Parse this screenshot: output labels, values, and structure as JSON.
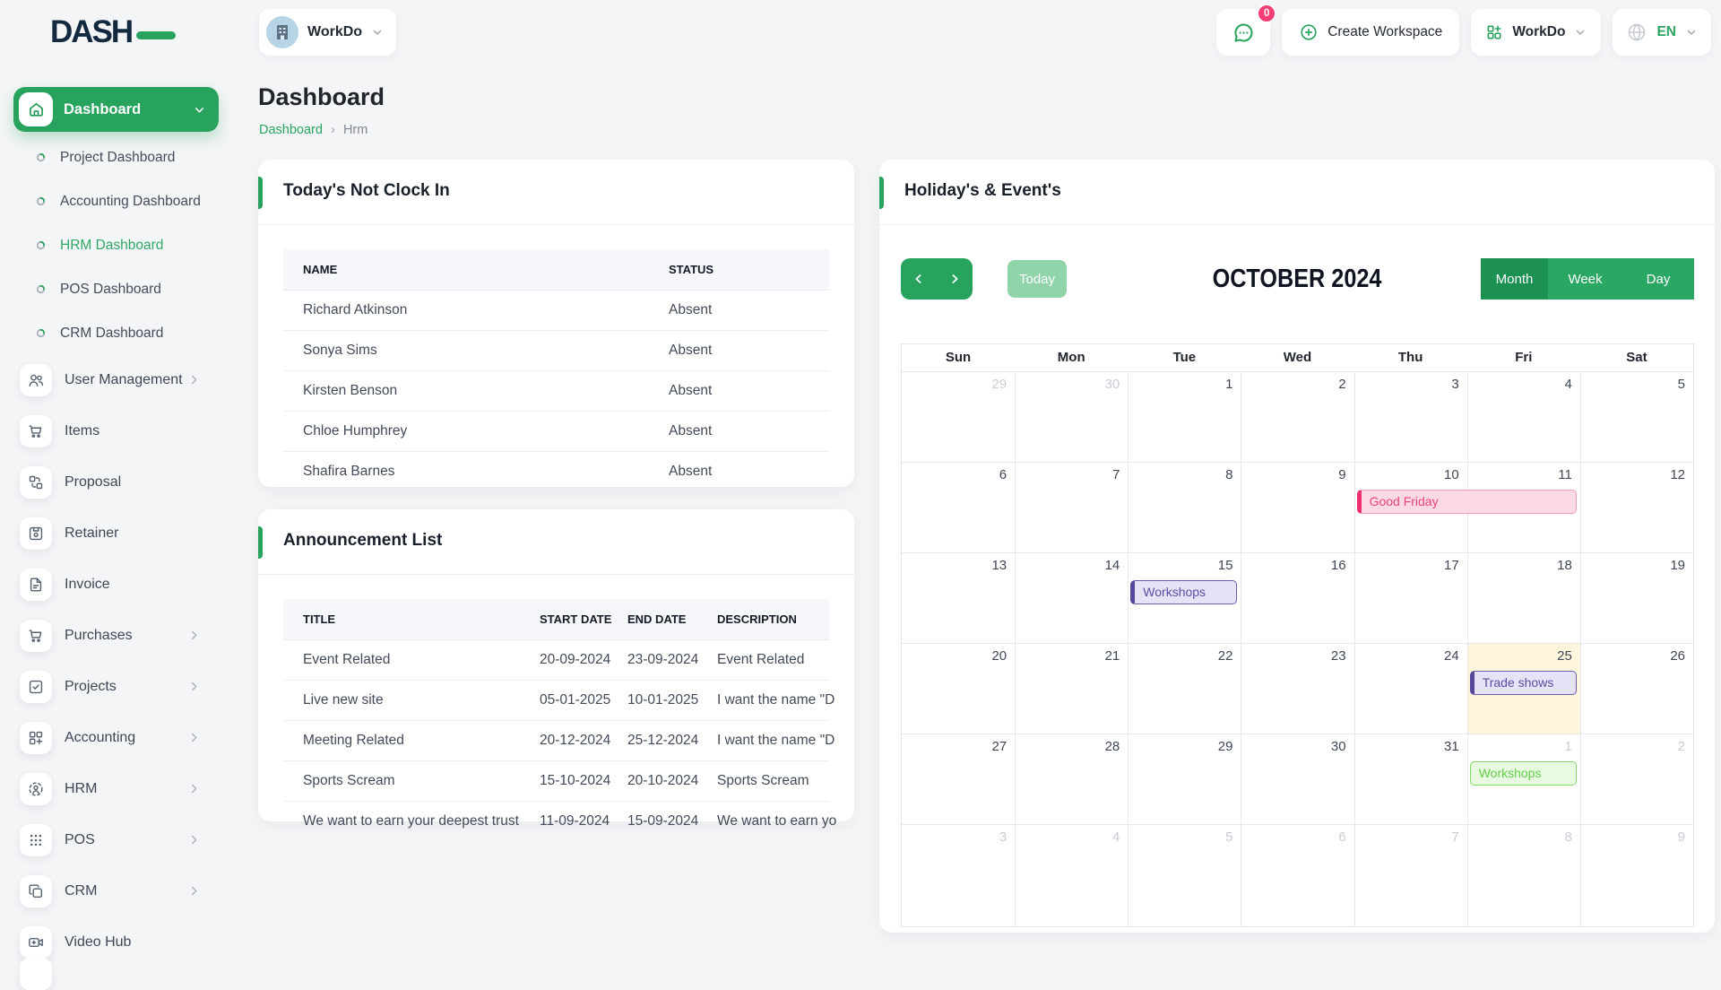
{
  "brand": {
    "logo_text": "DASH"
  },
  "topbar": {
    "workspace_pill": {
      "label": "WorkDo"
    },
    "messages": {
      "badge": "0"
    },
    "create_workspace": {
      "label": "Create Workspace"
    },
    "app_menu": {
      "label": "WorkDo"
    },
    "language": {
      "label": "EN"
    }
  },
  "sidebar": {
    "dashboard_group": {
      "label": "Dashboard",
      "children": [
        {
          "label": "Project Dashboard",
          "active": false
        },
        {
          "label": "Accounting Dashboard",
          "active": false
        },
        {
          "label": "HRM Dashboard",
          "active": true
        },
        {
          "label": "POS Dashboard",
          "active": false
        },
        {
          "label": "CRM Dashboard",
          "active": false
        }
      ]
    },
    "items": [
      {
        "label": "User Management",
        "icon": "users",
        "has_children": true
      },
      {
        "label": "Items",
        "icon": "cart",
        "has_children": false
      },
      {
        "label": "Proposal",
        "icon": "proposal",
        "has_children": false
      },
      {
        "label": "Retainer",
        "icon": "save",
        "has_children": false
      },
      {
        "label": "Invoice",
        "icon": "file",
        "has_children": false
      },
      {
        "label": "Purchases",
        "icon": "cart",
        "has_children": true
      },
      {
        "label": "Projects",
        "icon": "check-square",
        "has_children": true
      },
      {
        "label": "Accounting",
        "icon": "grid-plus",
        "has_children": true
      },
      {
        "label": "HRM",
        "icon": "user-dashed",
        "has_children": true
      },
      {
        "label": "POS",
        "icon": "dots-grid",
        "has_children": true
      },
      {
        "label": "CRM",
        "icon": "copy",
        "has_children": true
      },
      {
        "label": "Video Hub",
        "icon": "video",
        "has_children": false
      }
    ]
  },
  "page": {
    "title": "Dashboard",
    "breadcrumb": {
      "root": "Dashboard",
      "current": "Hrm"
    }
  },
  "cards": {
    "not_clock_in": {
      "title": "Today's Not Clock In",
      "columns": [
        "NAME",
        "STATUS"
      ],
      "rows": [
        {
          "name": "Richard Atkinson",
          "status": "Absent"
        },
        {
          "name": "Sonya Sims",
          "status": "Absent"
        },
        {
          "name": "Kirsten Benson",
          "status": "Absent"
        },
        {
          "name": "Chloe Humphrey",
          "status": "Absent"
        },
        {
          "name": "Shafira Barnes",
          "status": "Absent"
        }
      ]
    },
    "announcements": {
      "title": "Announcement List",
      "columns": [
        "TITLE",
        "START DATE",
        "END DATE",
        "DESCRIPTION"
      ],
      "rows": [
        {
          "title": "Event Related",
          "start": "20-09-2024",
          "end": "23-09-2024",
          "description": "Event Related"
        },
        {
          "title": "Live new site",
          "start": "05-01-2025",
          "end": "10-01-2025",
          "description": "I want the name \"D"
        },
        {
          "title": "Meeting Related",
          "start": "20-12-2024",
          "end": "25-12-2024",
          "description": "I want the name \"D"
        },
        {
          "title": "Sports Scream",
          "start": "15-10-2024",
          "end": "20-10-2024",
          "description": "Sports Scream"
        },
        {
          "title": "We want to earn your deepest trust",
          "start": "11-09-2024",
          "end": "15-09-2024",
          "description": "We want to earn yo"
        }
      ]
    },
    "calendar": {
      "title": "Holiday's & Event's",
      "toolbar": {
        "today_label": "Today",
        "month_label": "OCTOBER 2024",
        "views": [
          "Month",
          "Week",
          "Day"
        ],
        "active_view": "Month"
      },
      "weekdays": [
        "Sun",
        "Mon",
        "Tue",
        "Wed",
        "Thu",
        "Fri",
        "Sat"
      ],
      "weeks": [
        [
          {
            "n": "29",
            "muted": true
          },
          {
            "n": "30",
            "muted": true
          },
          {
            "n": "1"
          },
          {
            "n": "2"
          },
          {
            "n": "3"
          },
          {
            "n": "4"
          },
          {
            "n": "5"
          }
        ],
        [
          {
            "n": "6"
          },
          {
            "n": "7"
          },
          {
            "n": "8"
          },
          {
            "n": "9"
          },
          {
            "n": "10"
          },
          {
            "n": "11"
          },
          {
            "n": "12"
          }
        ],
        [
          {
            "n": "13"
          },
          {
            "n": "14"
          },
          {
            "n": "15"
          },
          {
            "n": "16"
          },
          {
            "n": "17"
          },
          {
            "n": "18"
          },
          {
            "n": "19"
          }
        ],
        [
          {
            "n": "20"
          },
          {
            "n": "21"
          },
          {
            "n": "22"
          },
          {
            "n": "23"
          },
          {
            "n": "24"
          },
          {
            "n": "25",
            "today": true
          },
          {
            "n": "26"
          }
        ],
        [
          {
            "n": "27"
          },
          {
            "n": "28"
          },
          {
            "n": "29"
          },
          {
            "n": "30"
          },
          {
            "n": "31"
          },
          {
            "n": "1",
            "muted": true
          },
          {
            "n": "2",
            "muted": true
          }
        ],
        [
          {
            "n": "3",
            "muted": true
          },
          {
            "n": "4",
            "muted": true
          },
          {
            "n": "5",
            "muted": true
          },
          {
            "n": "6",
            "muted": true
          },
          {
            "n": "7",
            "muted": true
          },
          {
            "n": "8",
            "muted": true
          },
          {
            "n": "9",
            "muted": true
          }
        ]
      ],
      "events": [
        {
          "label": "Good Friday",
          "week": 1,
          "col": 4,
          "span": 2,
          "style": "pink"
        },
        {
          "label": "Workshops",
          "week": 2,
          "col": 2,
          "span": 1,
          "style": "purple"
        },
        {
          "label": "Trade shows",
          "week": 3,
          "col": 5,
          "span": 1,
          "style": "purple"
        },
        {
          "label": "Workshops",
          "week": 4,
          "col": 5,
          "span": 1,
          "style": "green"
        }
      ]
    }
  },
  "colors": {
    "primary_green": "#27a35e",
    "badge_pink": "#f43f75",
    "today_cell_bg": "#fdf6dd",
    "event_pink": {
      "bg": "#fcd9e3",
      "border": "#ee2e6e",
      "text": "#e8447b"
    },
    "event_purple": {
      "bg": "#e7e3f6",
      "border": "#55489b",
      "text": "#5b4da3"
    },
    "event_green": {
      "bg": "#e8fae0",
      "border": "#7cdb62",
      "text": "#63cf49"
    }
  }
}
